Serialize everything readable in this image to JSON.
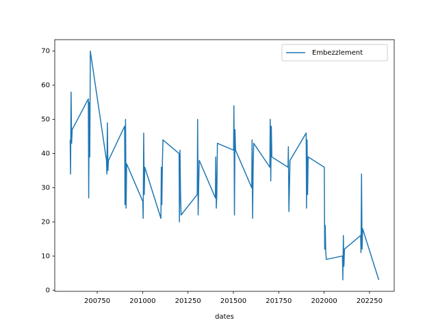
{
  "chart_data": {
    "type": "line",
    "x": [
      200601,
      200603,
      200606,
      200609,
      200612,
      200701,
      200703,
      200706,
      200709,
      200712,
      200801,
      200803,
      200806,
      200809,
      200812,
      200901,
      200903,
      200906,
      200909,
      200912,
      201001,
      201003,
      201006,
      201009,
      201012,
      201101,
      201103,
      201106,
      201109,
      201112,
      201201,
      201203,
      201206,
      201209,
      201212,
      201301,
      201303,
      201306,
      201309,
      201312,
      201401,
      201403,
      201406,
      201409,
      201412,
      201501,
      201503,
      201506,
      201509,
      201512,
      201601,
      201603,
      201606,
      201609,
      201612,
      201701,
      201703,
      201706,
      201709,
      201712,
      201801,
      201803,
      201806,
      201809,
      201812,
      201901,
      201903,
      201906,
      201909,
      201912,
      202001,
      202003,
      202006,
      202009,
      202012,
      202101,
      202103,
      202106,
      202109,
      202112,
      202201,
      202203,
      202206,
      202209,
      202212,
      202301
    ],
    "series": [
      {
        "name": "Embezzlement",
        "color": "#1f77b4",
        "values": [
          44,
          34,
          58,
          43,
          47,
          56,
          27,
          55,
          39,
          70,
          38,
          34,
          49,
          35,
          38,
          48,
          25,
          50,
          24,
          37,
          26,
          21,
          46,
          28,
          36,
          21,
          36,
          25,
          37,
          44,
          40,
          20,
          41,
          28,
          22,
          28,
          50,
          22,
          31,
          38,
          27,
          39,
          24,
          28,
          43,
          41,
          54,
          22,
          47,
          41,
          30,
          44,
          21,
          36,
          43,
          36,
          50,
          32,
          48,
          39,
          36,
          42,
          23,
          30,
          38,
          46,
          24,
          44,
          28,
          39,
          36,
          12,
          19,
          11,
          9,
          10,
          3,
          16,
          7,
          12,
          16,
          11,
          34,
          12,
          18,
          3
        ]
      }
    ],
    "xlabel": "dates",
    "xlim": [
      200516,
      202386
    ],
    "ylim": [
      -0.35,
      73.35
    ],
    "xticks": [
      200750,
      201000,
      201250,
      201500,
      201750,
      202000,
      202250
    ],
    "yticks": [
      0,
      10,
      20,
      30,
      40,
      50,
      60,
      70
    ],
    "legend": "upper right"
  }
}
